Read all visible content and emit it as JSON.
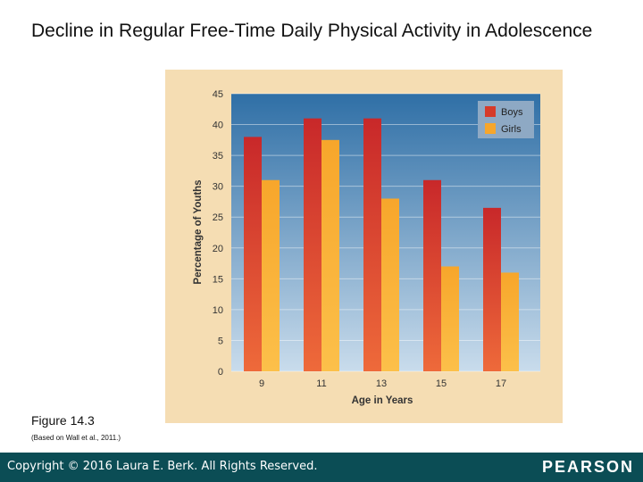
{
  "slide": {
    "title": "Decline in Regular Free-Time Daily Physical Activity in Adolescence",
    "figure_label": "Figure 14.3",
    "figure_source": "(Based on Wall et al., 2011.)",
    "footer_copyright": "Copyright © 2016 Laura E. Berk. All Rights Reserved.",
    "footer_brand": "PEARSON"
  },
  "colors": {
    "panel": "#f5ddb3",
    "plot_top": "#2f6fa6",
    "plot_bottom": "#c9dcec",
    "boys": "#d63b2a",
    "girls": "#f7a62b",
    "footer": "#0b4d55"
  },
  "chart_data": {
    "type": "bar",
    "title": "",
    "xlabel": "Age in Years",
    "ylabel": "Percentage of Youths",
    "categories": [
      "9",
      "11",
      "13",
      "15",
      "17"
    ],
    "series": [
      {
        "name": "Boys",
        "values": [
          38,
          41,
          41,
          31,
          26.5
        ]
      },
      {
        "name": "Girls",
        "values": [
          31,
          37.5,
          28,
          17,
          16
        ]
      }
    ],
    "ylim": [
      0,
      45
    ],
    "yticks": [
      "0",
      "5",
      "10",
      "15",
      "20",
      "25",
      "30",
      "35",
      "40",
      "45"
    ],
    "grid": true,
    "legend": "top-right"
  }
}
